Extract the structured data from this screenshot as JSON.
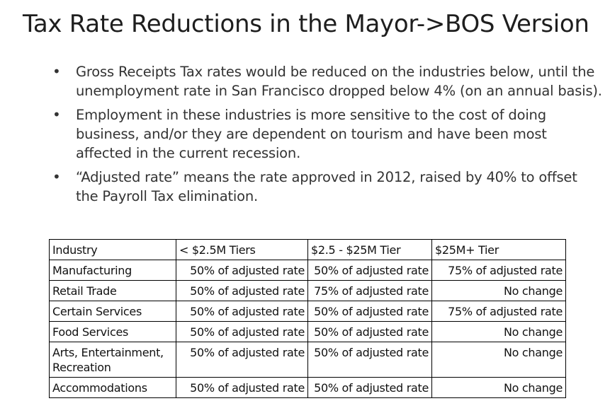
{
  "title": "Tax Rate Reductions in the Mayor->BOS Version",
  "bullets": [
    "Gross Receipts Tax rates would be reduced on the industries below, until the unemployment rate in San Francisco dropped below 4% (on an annual basis).",
    "Employment in these industries is more sensitive to the cost of doing business, and/or they are dependent on tourism and have been most affected in the current recession.",
    "“Adjusted rate” means the rate approved in 2012, raised by 40% to offset the Payroll Tax elimination."
  ],
  "table": {
    "headers": [
      "Industry",
      "< $2.5M Tiers",
      "$2.5 - $25M Tier",
      "$25M+ Tier"
    ],
    "rows": [
      [
        "Manufacturing",
        "50% of adjusted rate",
        "50% of adjusted rate",
        "75% of adjusted rate"
      ],
      [
        "Retail Trade",
        "50% of adjusted rate",
        "75% of adjusted rate",
        "No change"
      ],
      [
        "Certain Services",
        "50% of adjusted rate",
        "50% of adjusted rate",
        "75% of adjusted rate"
      ],
      [
        "Food Services",
        "50% of adjusted rate",
        "50% of adjusted rate",
        "No change"
      ],
      [
        "Arts, Entertainment, Recreation",
        "50% of adjusted rate",
        "50% of adjusted rate",
        "No change"
      ],
      [
        "Accommodations",
        "50% of adjusted rate",
        "50% of adjusted rate",
        "No change"
      ]
    ]
  }
}
